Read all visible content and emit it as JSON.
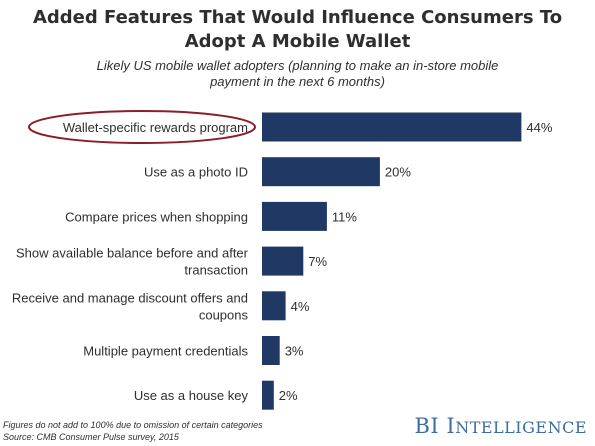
{
  "title": "Added Features That Would Influence Consumers To Adopt A Mobile Wallet",
  "subtitle_line1": "Likely US mobile wallet adopters (planning to make an in-store mobile",
  "subtitle_line2": "payment in the next 6 months)",
  "footnote_line1": "Figures do not add to 100% due to omission of certain categories",
  "footnote_line2": "Source: CMB Consumer Pulse survey, 2015",
  "brand": {
    "initials": "BI",
    "word_first": "I",
    "word_rest": "NTELLIGENCE"
  },
  "colors": {
    "bar": "#1f3864",
    "highlight_ellipse": "#8b1e2a",
    "text": "#2e2e2e"
  },
  "chart_data": {
    "type": "bar",
    "orientation": "horizontal",
    "categories": [
      [
        "Wallet-specific rewards program"
      ],
      [
        "Use as a photo ID"
      ],
      [
        "Compare prices when shopping"
      ],
      [
        "Show available balance before and after",
        "transaction"
      ],
      [
        "Receive and manage discount offers and",
        "coupons"
      ],
      [
        "Multiple payment credentials"
      ],
      [
        "Use as a house key"
      ]
    ],
    "values": [
      44,
      20,
      11,
      7,
      4,
      3,
      2
    ],
    "value_labels": [
      "44%",
      "20%",
      "11%",
      "7%",
      "4%",
      "3%",
      "2%"
    ],
    "highlighted_category_index": 0,
    "xlim": [
      0,
      48
    ],
    "grid": false,
    "legend": "none"
  }
}
